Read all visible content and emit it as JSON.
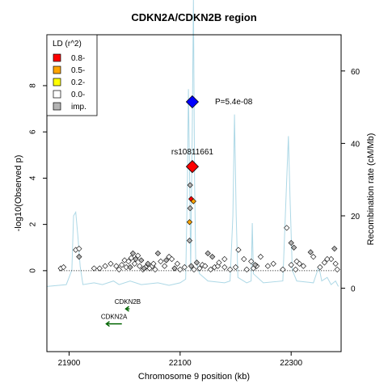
{
  "chart_data": {
    "type": "scatter",
    "title": "CDKN2A/CDKN2B region",
    "xlabel": "Chromosome 9 position (kb)",
    "ylabel": "-log10(Observed p)",
    "y2label": "Recombination rate (cM/Mb)",
    "xlim": [
      21860,
      22390
    ],
    "ylim": [
      -3.5,
      10.2
    ],
    "y2lim": [
      -17.5,
      70
    ],
    "x_ticks": [
      "21900",
      "22100",
      "22300"
    ],
    "x_tick_values": [
      21900,
      22100,
      22300
    ],
    "y_ticks": [
      "0",
      "2",
      "4",
      "6",
      "8"
    ],
    "y_tick_values": [
      0,
      2,
      4,
      6,
      8
    ],
    "y2_ticks": [
      "0",
      "20",
      "40",
      "60"
    ],
    "y2_tick_values": [
      0,
      20,
      40,
      60
    ],
    "threshold_line": 0,
    "legend": {
      "title": "LD (r^2)",
      "placement": "top-left",
      "entries": [
        {
          "label": "0.8-",
          "color": "#ff0000"
        },
        {
          "label": "0.5-",
          "color": "#ffa500"
        },
        {
          "label": "0.2-",
          "color": "#ffff00"
        },
        {
          "label": "0.0-",
          "color": "#ffffff"
        },
        {
          "label": "imp.",
          "color": "#b3b3b3"
        }
      ]
    },
    "annotations": {
      "p_label": "P=5.4e-08",
      "snp_label": "rs10811661"
    },
    "colors": {
      "recomb": "#add8e6",
      "gene": "#006400",
      "lead": "#0000ff",
      "top_snp": "#ff0000",
      "orange": "#ffa500",
      "imputed": "#b3b3b3",
      "white": "#ffffff"
    },
    "lead_snp": {
      "x": 22122,
      "y": 7.3
    },
    "top_snp": {
      "x": 22122,
      "y": 4.5
    },
    "points_colored": [
      {
        "x": 22120,
        "y": 3.1,
        "ld": "0.8-"
      },
      {
        "x": 22124,
        "y": 3.0,
        "ld": "0.5-"
      },
      {
        "x": 22117,
        "y": 2.1,
        "ld": "0.5-"
      }
    ],
    "points_imputed": [
      [
        21918,
        0.6
      ],
      [
        22118,
        3.7
      ],
      [
        22118,
        2.7
      ],
      [
        22117,
        1.3
      ],
      [
        22015,
        0.75
      ],
      [
        22020,
        0.5
      ],
      [
        22030,
        0.45
      ],
      [
        22042,
        0.3
      ],
      [
        22060,
        0.75
      ],
      [
        22075,
        0.45
      ],
      [
        22120,
        0.2
      ],
      [
        22130,
        0.35
      ],
      [
        22150,
        0.75
      ],
      [
        22158,
        0.6
      ],
      [
        22235,
        0.25
      ],
      [
        22300,
        1.2
      ],
      [
        22305,
        1.0
      ],
      [
        22335,
        0.8
      ],
      [
        22378,
        0.95
      ],
      [
        22010,
        0.15
      ],
      [
        22035,
        0.1
      ],
      [
        22090,
        0.1
      ]
    ],
    "points_white": [
      [
        21885,
        0.1
      ],
      [
        21890,
        0.15
      ],
      [
        21912,
        0.9
      ],
      [
        21918,
        0.95
      ],
      [
        21945,
        0.1
      ],
      [
        21955,
        0.1
      ],
      [
        21965,
        0.2
      ],
      [
        21975,
        0.3
      ],
      [
        21985,
        0.2
      ],
      [
        21990,
        0.05
      ],
      [
        21995,
        0.25
      ],
      [
        22000,
        0.45
      ],
      [
        22003,
        0.15
      ],
      [
        22007,
        0.4
      ],
      [
        22012,
        0.55
      ],
      [
        22018,
        0.3
      ],
      [
        22024,
        0.65
      ],
      [
        22027,
        0.2
      ],
      [
        22033,
        0.05
      ],
      [
        22038,
        0.15
      ],
      [
        22045,
        0.1
      ],
      [
        22050,
        0.2
      ],
      [
        22055,
        0.05
      ],
      [
        22065,
        0.4
      ],
      [
        22072,
        0.2
      ],
      [
        22080,
        0.6
      ],
      [
        22085,
        0.5
      ],
      [
        22095,
        0.3
      ],
      [
        22100,
        0.05
      ],
      [
        22108,
        0.15
      ],
      [
        22125,
        0.05
      ],
      [
        22135,
        0.1
      ],
      [
        22140,
        0.25
      ],
      [
        22145,
        0.2
      ],
      [
        22155,
        0.05
      ],
      [
        22162,
        0.15
      ],
      [
        22168,
        0.2
      ],
      [
        22180,
        0.5
      ],
      [
        22190,
        0.05
      ],
      [
        22200,
        0.15
      ],
      [
        22205,
        0.9
      ],
      [
        22215,
        0.5
      ],
      [
        22228,
        0.4
      ],
      [
        22232,
        0.1
      ],
      [
        22238,
        0.2
      ],
      [
        22245,
        0.6
      ],
      [
        22258,
        0.2
      ],
      [
        22268,
        0.3
      ],
      [
        22285,
        0.05
      ],
      [
        22292,
        1.85
      ],
      [
        22310,
        0.4
      ],
      [
        22315,
        0.3
      ],
      [
        22322,
        0.2
      ],
      [
        22340,
        0.6
      ],
      [
        22352,
        0.15
      ],
      [
        22360,
        0.35
      ],
      [
        22372,
        0.5
      ],
      [
        22380,
        0.3
      ],
      [
        22383,
        0.05
      ],
      [
        22180,
        0.15
      ],
      [
        22300,
        0.25
      ],
      [
        22308,
        0.05
      ],
      [
        22220,
        0.05
      ],
      [
        22365,
        0.5
      ],
      [
        22170,
        0.35
      ],
      [
        22052,
        0.3
      ]
    ],
    "recomb_rate": [
      [
        21860,
        0.5
      ],
      [
        21895,
        1.0
      ],
      [
        21905,
        5.0
      ],
      [
        21908,
        20.0
      ],
      [
        21912,
        21.0
      ],
      [
        21916,
        14.0
      ],
      [
        21920,
        6.0
      ],
      [
        21925,
        1.0
      ],
      [
        21945,
        1.5
      ],
      [
        21960,
        1.0
      ],
      [
        21980,
        2.0
      ],
      [
        21990,
        1.0
      ],
      [
        22010,
        2.0
      ],
      [
        22030,
        1.0
      ],
      [
        22060,
        1.5
      ],
      [
        22080,
        0.8
      ],
      [
        22100,
        1.5
      ],
      [
        22110,
        2.5
      ],
      [
        22113,
        28.0
      ],
      [
        22115,
        55.0
      ],
      [
        22117,
        32.0
      ],
      [
        22119,
        5.0
      ],
      [
        22120,
        20.0
      ],
      [
        22122,
        45.0
      ],
      [
        22124,
        80.0
      ],
      [
        22126,
        30.0
      ],
      [
        22128,
        8.0
      ],
      [
        22135,
        4.0
      ],
      [
        22150,
        2.0
      ],
      [
        22180,
        1.5
      ],
      [
        22190,
        2.0
      ],
      [
        22195,
        20.0
      ],
      [
        22198,
        48.0
      ],
      [
        22201,
        20.0
      ],
      [
        22204,
        3.0
      ],
      [
        22220,
        1.5
      ],
      [
        22228,
        2.0
      ],
      [
        22230,
        18.0
      ],
      [
        22232,
        4.0
      ],
      [
        22250,
        1.5
      ],
      [
        22285,
        2.0
      ],
      [
        22292,
        30.0
      ],
      [
        22295,
        42.0
      ],
      [
        22298,
        25.0
      ],
      [
        22302,
        5.0
      ],
      [
        22310,
        2.0
      ],
      [
        22340,
        1.5
      ],
      [
        22350,
        6.0
      ],
      [
        22355,
        2.0
      ],
      [
        22365,
        3.0
      ],
      [
        22372,
        1.0
      ],
      [
        22380,
        2.0
      ],
      [
        22385,
        0.5
      ]
    ],
    "genes": [
      {
        "name": "CDKN2B",
        "start": 22002,
        "end": 22009,
        "strand": "-",
        "y": -1.65
      },
      {
        "name": "CDKN2A",
        "start": 21967,
        "end": 21995,
        "strand": "-",
        "y": -2.3
      }
    ]
  }
}
